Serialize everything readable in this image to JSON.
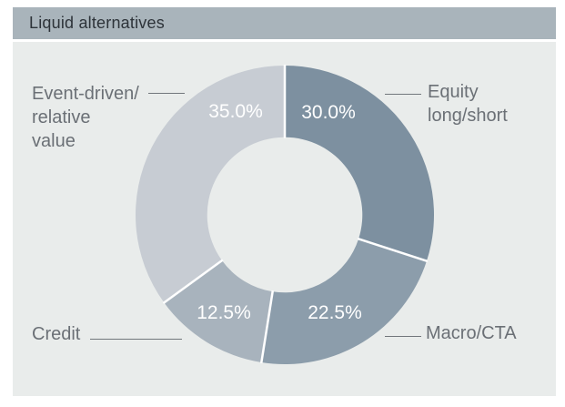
{
  "header": {
    "title": "Liquid alternatives"
  },
  "chart_data": {
    "type": "pie",
    "subtype": "donut",
    "title": "Liquid alternatives",
    "start_angle_deg": 0,
    "direction": "clockwise",
    "donut_hole_ratio": 0.52,
    "slices": [
      {
        "label": "Equity long/short",
        "value": 30.0,
        "display": "30.0%",
        "color": "#7d90a0"
      },
      {
        "label": "Macro/CTA",
        "value": 22.5,
        "display": "22.5%",
        "color": "#8c9dab"
      },
      {
        "label": "Credit",
        "value": 12.5,
        "display": "12.5%",
        "color": "#a8b3bd"
      },
      {
        "label": "Event-driven/relative value",
        "value": 35.0,
        "display": "35.0%",
        "color": "#c7ccd3"
      }
    ],
    "value_labels_inside": true,
    "legend": "none"
  },
  "callouts": {
    "event_driven": "Event-driven/\nrelative\nvalue",
    "equity": "Equity\nlong/short",
    "credit": "Credit",
    "macro": "Macro/CTA"
  },
  "colors": {
    "title_bar_bg": "#a9b4bb",
    "content_bg": "#e9eceb",
    "title_text": "#2d3339",
    "callout_text": "#6b7076",
    "leader_line": "#72777c",
    "percent_text": "#ffffff",
    "slice_separator": "#ffffff"
  }
}
